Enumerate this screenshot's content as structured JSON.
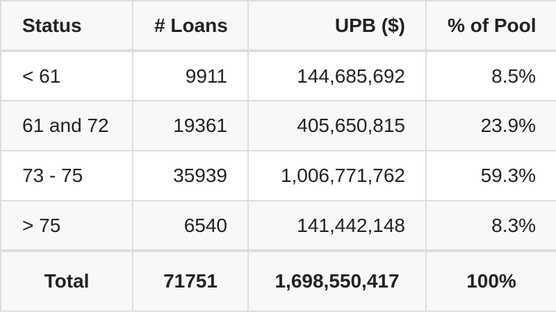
{
  "table": {
    "headers": [
      "Status",
      "# Loans",
      "UPB ($)",
      "% of Pool"
    ],
    "rows": [
      [
        "< 61",
        "9911",
        "144,685,692",
        "8.5%"
      ],
      [
        "61 and 72",
        "19361",
        "405,650,815",
        "23.9%"
      ],
      [
        "73 - 75",
        "35939",
        "1,006,771,762",
        "59.3%"
      ],
      [
        "> 75",
        "6540",
        "141,442,148",
        "8.3%"
      ]
    ],
    "total": [
      "Total",
      "71751",
      "1,698,550,417",
      "100%"
    ]
  }
}
